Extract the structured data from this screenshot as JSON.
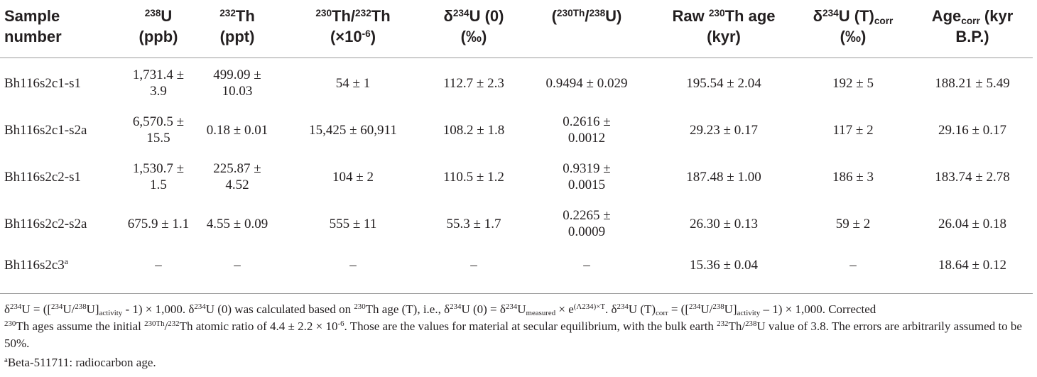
{
  "table": {
    "headers": {
      "sample": "Sample number",
      "u238_iso": "238",
      "u238_el": "U",
      "u238_unit": "(ppb)",
      "th232_iso": "232",
      "th232_el": "Th",
      "th232_unit": "(ppt)",
      "ratio_iso1": "230",
      "ratio_el1": "Th/",
      "ratio_iso2": "232",
      "ratio_el2": "Th",
      "ratio_unit_pre": "(×10",
      "ratio_unit_exp": "-6",
      "ratio_unit_post": ")",
      "d234_delta": "δ",
      "d234_iso": "234",
      "d234_el": "U (0)",
      "d234_unit": "(‰)",
      "act_open": "(",
      "act_iso1": "230",
      "act_el1": "Th",
      "act_slash": "/",
      "act_iso2": "238",
      "act_el2": "U)",
      "raw_pre": "Raw ",
      "raw_iso": "230",
      "raw_el": "Th age",
      "raw_unit": "(kyr)",
      "dT_delta": "δ",
      "dT_iso": "234",
      "dT_el": "U (T)",
      "dT_sub": "corr",
      "dT_unit": "(‰)",
      "age_pre": "Age",
      "age_sub": "corr",
      "age_post": " (kyr",
      "age_unit": "B.P.)"
    },
    "rows": [
      {
        "sample": "Bh116s2c1-s1",
        "u238": [
          "1,731.4 ±",
          "3.9"
        ],
        "th232": [
          "499.09 ±",
          "10.03"
        ],
        "ratio": "54 ± 1",
        "d234": "112.7 ± 2.3",
        "activity": [
          "0.9494 ± 0.029"
        ],
        "raw_age": "195.54 ± 2.04",
        "d234_T": "192 ± 5",
        "age_corr": "188.21 ± 5.49"
      },
      {
        "sample": "Bh116s2c1-s2a",
        "u238": [
          "6,570.5 ±",
          "15.5"
        ],
        "th232": [
          "0.18 ± 0.01"
        ],
        "ratio": "15,425 ± 60,911",
        "d234": "108.2 ± 1.8",
        "activity": [
          "0.2616 ±",
          "0.0012"
        ],
        "raw_age": "29.23 ± 0.17",
        "d234_T": "117 ± 2",
        "age_corr": "29.16 ± 0.17"
      },
      {
        "sample": "Bh116s2c2-s1",
        "u238": [
          "1,530.7 ±",
          "1.5"
        ],
        "th232": [
          "225.87 ±",
          "4.52"
        ],
        "ratio": "104 ± 2",
        "d234": "110.5 ± 1.2",
        "activity": [
          "0.9319 ±",
          "0.0015"
        ],
        "raw_age": "187.48 ± 1.00",
        "d234_T": "186 ± 3",
        "age_corr": "183.74 ± 2.78"
      },
      {
        "sample": "Bh116s2c2-s2a",
        "u238": [
          "675.9 ± 1.1"
        ],
        "th232": [
          "4.55 ± 0.09"
        ],
        "ratio": "555 ± 11",
        "d234": "55.3 ± 1.7",
        "activity": [
          "0.2265 ±",
          "0.0009"
        ],
        "raw_age": "26.30 ± 0.13",
        "d234_T": "59 ± 2",
        "age_corr": "26.04 ± 0.18"
      },
      {
        "sample": "Bh116s2c3",
        "sample_sup": "a",
        "u238": [
          "–"
        ],
        "th232": [
          "–"
        ],
        "ratio": "–",
        "d234": "–",
        "activity": [
          "–"
        ],
        "raw_age": "15.36 ± 0.04",
        "d234_T": "–",
        "age_corr": "18.64 ± 0.12"
      }
    ]
  },
  "footnote1": {
    "p1": "δ",
    "p2": "234",
    "p3": "U = ([",
    "p4": "234",
    "p5": "U/",
    "p6": "238",
    "p7": "U]",
    "p8": "activity",
    "p9": " - 1) × 1,000. δ",
    "p10": "234",
    "p11": "U (0) was calculated based on ",
    "p12": "230",
    "p13": "Th age (T), i.e., δ",
    "p14": "234",
    "p15": "U (0) = δ",
    "p16": "234",
    "p17": "U",
    "p18": "measured",
    "p19": " × e",
    "p20": "(Λ234)×T",
    "p21": ". δ",
    "p22": "234",
    "p23": "U (T)",
    "p24": "corr",
    "p25": " = ([",
    "p26": "234",
    "p27": "U/",
    "p28": "238",
    "p29": "U]",
    "p30": "activity",
    "p31": " – 1) × 1,000. Corrected",
    "p32": "230",
    "p33": "Th ages assume the initial ",
    "p34": "230",
    "p35": "Th",
    "p36": "/",
    "p37": "232",
    "p38": "Th atomic ratio of 4.4 ± 2.2 × 10",
    "p39": "-6",
    "p40": ". Those are the values for material at secular equilibrium, with the bulk earth ",
    "p41": "232",
    "p42": "Th/",
    "p43": "238",
    "p44": "U value of 3.8. The errors are arbitrarily assumed to be 50%."
  },
  "footnote2": {
    "sup": "a",
    "text": "Beta-511711: radiocarbon age."
  }
}
